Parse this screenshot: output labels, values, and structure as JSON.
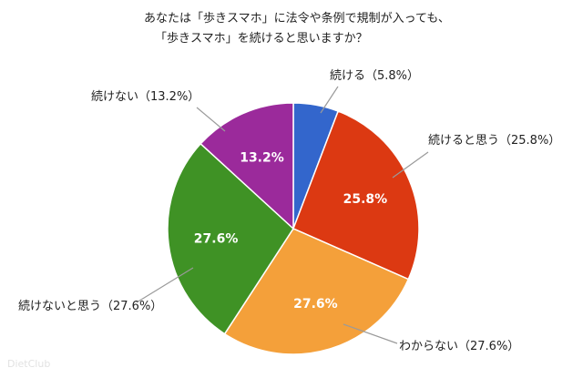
{
  "chart_data": {
    "type": "pie",
    "title_lines": [
      "あなたは「歩きスマホ」に法令や条例で規制が入っても、",
      "「歩きスマホ」を続けると思いますか？"
    ],
    "slices": [
      {
        "name": "続ける",
        "value": 5.8,
        "inside_label": "",
        "outside_label": "続ける（5.8%）",
        "color": "#3366cc"
      },
      {
        "name": "続けると思う",
        "value": 25.8,
        "inside_label": "25.8%",
        "outside_label": "続けると思う（25.8%）",
        "color": "#dc3912"
      },
      {
        "name": "わからない",
        "value": 27.6,
        "inside_label": "27.6%",
        "outside_label": "わからない（27.6%）",
        "color": "#f4a03a"
      },
      {
        "name": "続けないと思う",
        "value": 27.6,
        "inside_label": "27.6%",
        "outside_label": "続けないと思う（27.6%）",
        "color": "#3f9225"
      },
      {
        "name": "続けない",
        "value": 13.2,
        "inside_label": "13.2%",
        "outside_label": "続けない（13.2%）",
        "color": "#9b2a9b"
      }
    ],
    "start_angle_deg": 0,
    "direction": "clockwise"
  },
  "watermark": "DietClub"
}
